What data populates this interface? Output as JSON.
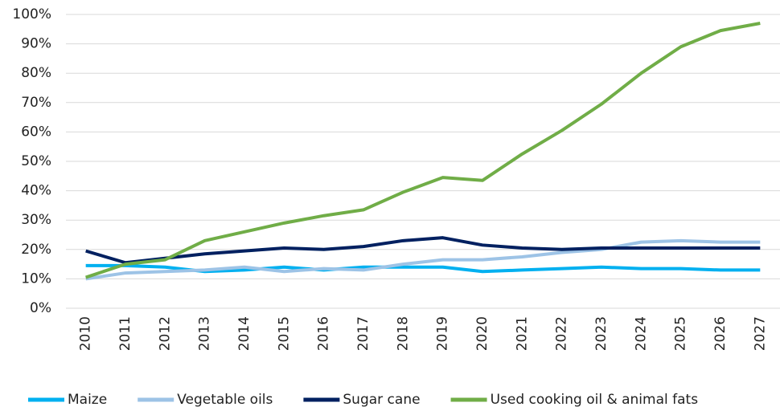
{
  "chart_data": {
    "type": "line",
    "categories": [
      "2010",
      "2011",
      "2012",
      "2013",
      "2014",
      "2015",
      "2016",
      "2017",
      "2018",
      "2019",
      "2020",
      "2021",
      "2022",
      "2023",
      "2024",
      "2025",
      "2026",
      "2027"
    ],
    "series": [
      {
        "name": "Maize",
        "color": "#00b0f0",
        "values": [
          14.5,
          14.5,
          14,
          12.5,
          13,
          14,
          13,
          14,
          14,
          14,
          12.5,
          13,
          13.5,
          14,
          13.5,
          13.5,
          13,
          13
        ]
      },
      {
        "name": "Vegetable oils",
        "color": "#9dc3e6",
        "values": [
          10,
          12,
          12.5,
          13,
          14,
          12.5,
          13.5,
          13,
          15,
          16.5,
          16.5,
          17.5,
          19,
          20,
          22.5,
          23,
          22.5,
          22.5
        ]
      },
      {
        "name": "Sugar cane",
        "color": "#002060",
        "values": [
          19.5,
          15.5,
          17,
          18.5,
          19.5,
          20.5,
          20,
          21,
          23,
          24,
          21.5,
          20.5,
          20,
          20.5,
          20.5,
          20.5,
          20.5,
          20.5
        ]
      },
      {
        "name": "Used cooking oil & animal fats",
        "color": "#70ad47",
        "values": [
          10.5,
          15,
          16.5,
          23,
          26,
          29,
          31.5,
          33.5,
          39.5,
          44.5,
          43.5,
          52.5,
          60.5,
          69.5,
          80,
          89,
          94.5,
          97
        ]
      }
    ],
    "ylim": [
      0,
      100
    ],
    "yticks": [
      {
        "value": 0,
        "label": "0%"
      },
      {
        "value": 10,
        "label": "10%"
      },
      {
        "value": 20,
        "label": "20%"
      },
      {
        "value": 30,
        "label": "30%"
      },
      {
        "value": 40,
        "label": "40%"
      },
      {
        "value": 50,
        "label": "50%"
      },
      {
        "value": 60,
        "label": "60%"
      },
      {
        "value": 70,
        "label": "70%"
      },
      {
        "value": 80,
        "label": "80%"
      },
      {
        "value": 90,
        "label": "90%"
      },
      {
        "value": 100,
        "label": "100%"
      }
    ],
    "grid": true,
    "legend": "bottom"
  }
}
